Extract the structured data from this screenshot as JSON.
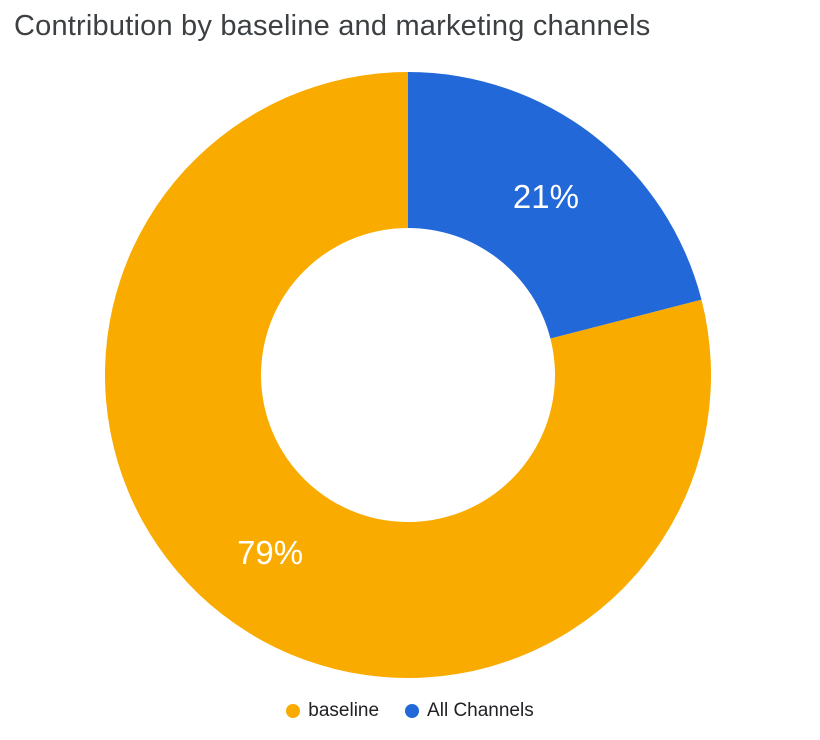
{
  "chart_data": {
    "type": "pie",
    "donut": true,
    "title": "Contribution by baseline and marketing channels",
    "legend_position": "bottom",
    "slices": [
      {
        "label": "baseline",
        "value": 79,
        "data_label": "79%",
        "color": "#F9AB00"
      },
      {
        "label": "All Channels",
        "value": 21,
        "data_label": "21%",
        "color": "#2368D8"
      }
    ]
  }
}
